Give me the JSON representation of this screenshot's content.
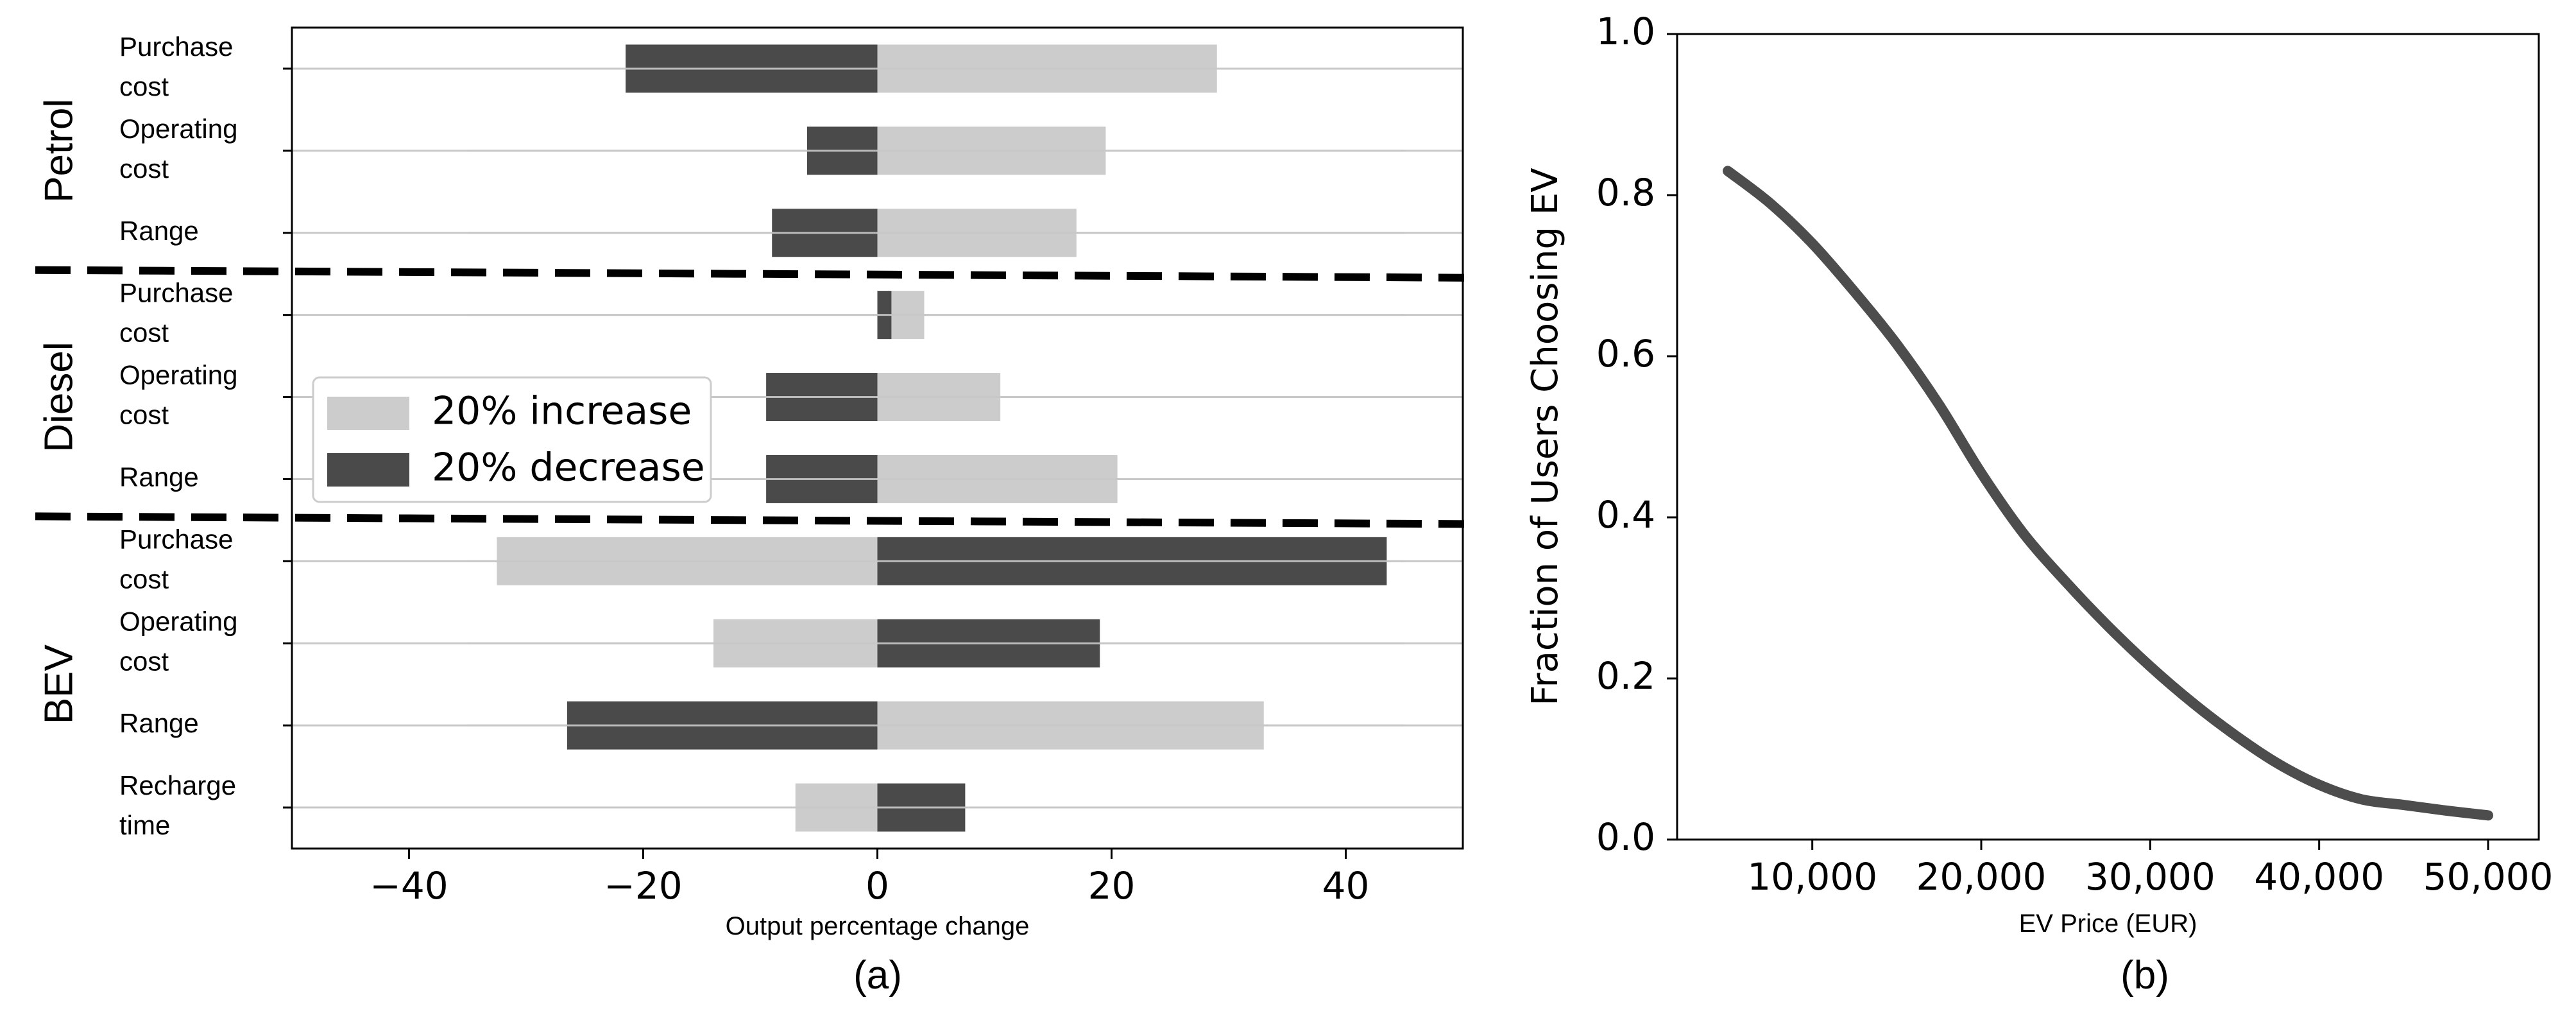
{
  "chart_data": [
    {
      "type": "bar",
      "orientation": "horizontal",
      "panel_label": "(a)",
      "xlabel": "Output percentage change",
      "xlim": [
        -50,
        50
      ],
      "xticks": [
        -40,
        -20,
        0,
        20,
        40
      ],
      "xtick_labels": [
        "−40",
        "−20",
        "0",
        "20",
        "40"
      ],
      "groups": [
        "Petrol",
        "Diesel",
        "BEV"
      ],
      "categories": [
        {
          "group": "Petrol",
          "lines": [
            "Purchase",
            "cost"
          ]
        },
        {
          "group": "Petrol",
          "lines": [
            "Operating",
            "cost"
          ]
        },
        {
          "group": "Petrol",
          "lines": [
            "Range"
          ]
        },
        {
          "group": "Diesel",
          "lines": [
            "Purchase",
            "cost"
          ]
        },
        {
          "group": "Diesel",
          "lines": [
            "Operating",
            "cost"
          ]
        },
        {
          "group": "Diesel",
          "lines": [
            "Range"
          ]
        },
        {
          "group": "BEV",
          "lines": [
            "Purchase",
            "cost"
          ]
        },
        {
          "group": "BEV",
          "lines": [
            "Operating",
            "cost"
          ]
        },
        {
          "group": "BEV",
          "lines": [
            "Range"
          ]
        },
        {
          "group": "BEV",
          "lines": [
            "Recharge",
            "time"
          ]
        }
      ],
      "series": [
        {
          "name": "20% increase",
          "color": "#cccccc",
          "values": [
            29,
            19.5,
            17,
            4,
            10.5,
            20.5,
            -32.5,
            -14,
            33,
            -7
          ]
        },
        {
          "name": "20% decrease",
          "color": "#4a4a4a",
          "values": [
            -21.5,
            -6,
            -9,
            1.2,
            -9.5,
            -9.5,
            43.5,
            19,
            -26.5,
            7.5
          ]
        }
      ],
      "legend_position": "center-left"
    },
    {
      "type": "line",
      "panel_label": "(b)",
      "xlabel": "EV Price (EUR)",
      "ylabel": "Fraction of Users Choosing EV",
      "xlim": [
        2000,
        53000
      ],
      "ylim": [
        0,
        1.0
      ],
      "xticks": [
        10000,
        20000,
        30000,
        40000,
        50000
      ],
      "xtick_labels": [
        "10,000",
        "20,000",
        "30,000",
        "40,000",
        "50,000"
      ],
      "yticks": [
        0,
        0.2,
        0.4,
        0.6,
        0.8,
        1.0
      ],
      "ytick_labels": [
        "0.0",
        "0.2",
        "0.4",
        "0.6",
        "0.8",
        "1.0"
      ],
      "color": "#4d4d4d",
      "x": [
        5000,
        7500,
        10000,
        12500,
        15000,
        17500,
        20000,
        22500,
        25000,
        27500,
        30000,
        32500,
        35000,
        37500,
        40000,
        42500,
        45000,
        47500,
        50000
      ],
      "y": [
        0.83,
        0.79,
        0.74,
        0.68,
        0.615,
        0.54,
        0.455,
        0.38,
        0.32,
        0.265,
        0.215,
        0.17,
        0.13,
        0.095,
        0.068,
        0.05,
        0.043,
        0.036,
        0.03
      ]
    }
  ]
}
